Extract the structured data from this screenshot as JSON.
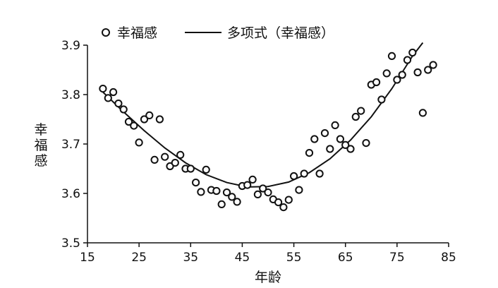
{
  "chart_data": {
    "type": "scatter",
    "xlabel": "年龄",
    "ylabel": "幸福感",
    "xlim": [
      15,
      85
    ],
    "ylim": [
      3.5,
      3.9
    ],
    "xticks": [
      "15",
      "25",
      "35",
      "45",
      "55",
      "65",
      "75",
      "85"
    ],
    "yticks": [
      "3.5",
      "3.6",
      "3.7",
      "3.8",
      "3.9"
    ],
    "grid": false,
    "legend": {
      "placement": "top",
      "entries": [
        "幸福感",
        "多项式（幸福感）"
      ]
    },
    "series": [
      {
        "name": "幸福感",
        "kind": "scatter",
        "x": [
          18,
          19,
          20,
          21,
          22,
          23,
          24,
          25,
          26,
          27,
          28,
          29,
          30,
          31,
          32,
          33,
          34,
          35,
          36,
          37,
          38,
          39,
          40,
          41,
          42,
          43,
          44,
          45,
          46,
          47,
          48,
          49,
          50,
          51,
          52,
          53,
          54,
          55,
          56,
          57,
          58,
          59,
          60,
          61,
          62,
          63,
          64,
          65,
          66,
          67,
          68,
          69,
          70,
          71,
          72,
          73,
          74,
          75,
          76,
          77,
          78,
          79,
          80,
          81,
          82
        ],
        "y": [
          3.812,
          3.793,
          3.805,
          3.782,
          3.77,
          3.745,
          3.737,
          3.703,
          3.75,
          3.758,
          3.668,
          3.75,
          3.674,
          3.655,
          3.662,
          3.678,
          3.65,
          3.65,
          3.622,
          3.603,
          3.648,
          3.607,
          3.605,
          3.578,
          3.602,
          3.593,
          3.583,
          3.615,
          3.617,
          3.628,
          3.598,
          3.61,
          3.602,
          3.588,
          3.582,
          3.572,
          3.587,
          3.635,
          3.607,
          3.64,
          3.682,
          3.71,
          3.64,
          3.722,
          3.69,
          3.738,
          3.71,
          3.698,
          3.69,
          3.755,
          3.767,
          3.702,
          3.82,
          3.825,
          3.79,
          3.843,
          3.878,
          3.83,
          3.84,
          3.87,
          3.885,
          3.845,
          3.763,
          3.85,
          3.86
        ]
      },
      {
        "name": "多项式（幸福感）",
        "kind": "line",
        "x": [
          18,
          22,
          26,
          30,
          34,
          38,
          42,
          46,
          50,
          54,
          58,
          62,
          66,
          70,
          74,
          78,
          80
        ],
        "y": [
          3.805,
          3.765,
          3.727,
          3.692,
          3.662,
          3.638,
          3.622,
          3.613,
          3.614,
          3.623,
          3.642,
          3.67,
          3.708,
          3.755,
          3.812,
          3.878,
          3.905
        ]
      }
    ]
  }
}
